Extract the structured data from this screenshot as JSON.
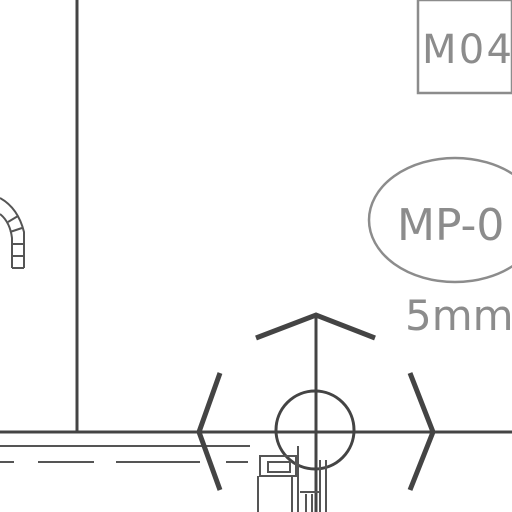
{
  "drawing": {
    "tags": {
      "room_tag": "M04",
      "equipment_tag": "MP-0",
      "dimension_note": "5mm"
    },
    "colors": {
      "line": "#444444",
      "tag_text": "#8c8c8c",
      "tag_border": "#8c8c8c",
      "background": "#ffffff"
    }
  }
}
